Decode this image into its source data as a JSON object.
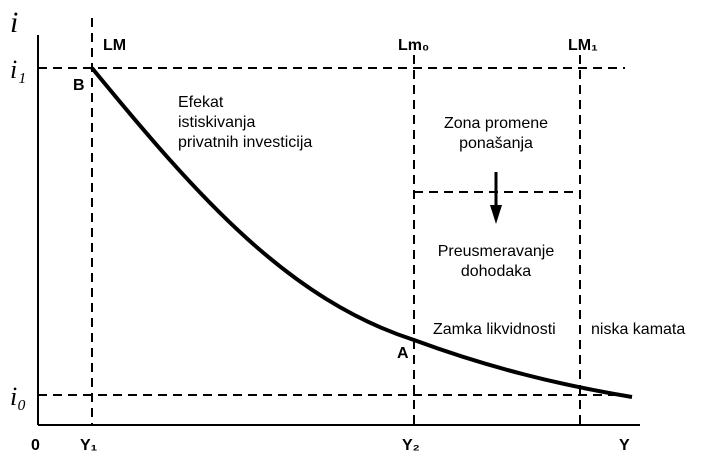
{
  "axes": {
    "y_title": "i",
    "x_title": "Y",
    "origin": "0",
    "y_ticks": {
      "i1": "i₁",
      "i0": "i₀"
    },
    "x_ticks": {
      "y1": "Y₁",
      "y2": "Y₂"
    }
  },
  "curves": {
    "lm": "LM",
    "lm0": "Lm₀",
    "lm1": "LM₁"
  },
  "points": {
    "b": "B",
    "a": "A"
  },
  "regions": {
    "crowding": [
      "Efekat",
      "istiskivanja",
      "privatnih investicija"
    ],
    "behavior_change": [
      "Zona promene",
      "ponašanja"
    ],
    "redirect": [
      "Preusmeravanje",
      "dohodaka"
    ],
    "liquidity_trap": "Zamka likvidnosti",
    "low_interest": "niska kamata"
  },
  "colors": {
    "ink": "#000000",
    "background": "#ffffff"
  }
}
